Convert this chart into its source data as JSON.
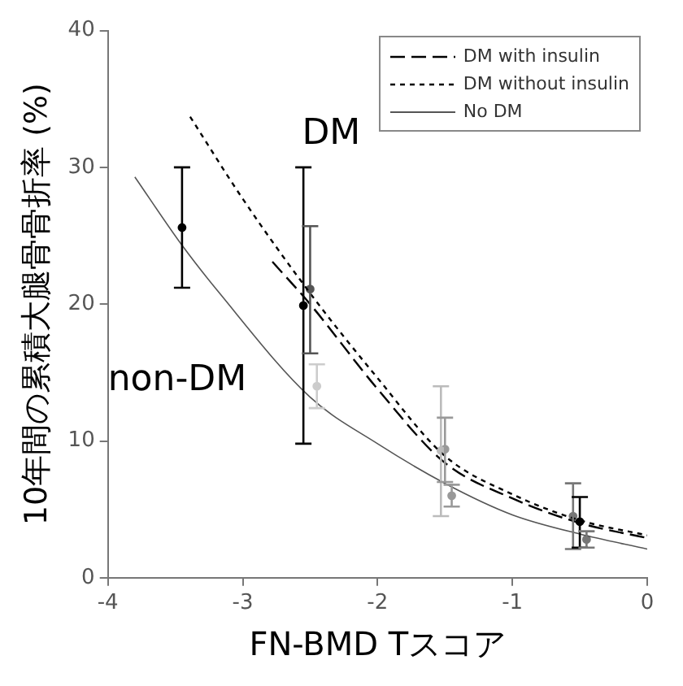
{
  "chart_data": {
    "type": "line",
    "xlabel": "FN-BMD Tスコア",
    "ylabel": "10年間の累積大腿骨骨折率 (%)",
    "xlim": [
      -4,
      0
    ],
    "xticks": [
      -4,
      -3,
      -2,
      -1,
      0
    ],
    "ylim": [
      0,
      40
    ],
    "yticks": [
      0,
      10,
      20,
      30,
      40
    ],
    "grid": false,
    "legend": "top right",
    "series": [
      {
        "name": "DM with insulin",
        "line_style": "dashed",
        "color": "#000000",
        "x": [
          -2.78,
          -2.5,
          -2,
          -1.5,
          -1,
          -0.5,
          0
        ],
        "values": [
          23.1,
          20,
          13.8,
          8.4,
          5.8,
          4,
          2.9
        ]
      },
      {
        "name": "DM without insulin",
        "line_style": "dotted",
        "color": "#000000",
        "x": [
          -3.39,
          -3,
          -2.5,
          -2,
          -1.5,
          -1,
          -0.5,
          0
        ],
        "values": [
          33.7,
          27.7,
          20.8,
          14.6,
          8.9,
          6.1,
          4.2,
          3.1
        ]
      },
      {
        "name": "No DM",
        "line_style": "solid",
        "color": "#555555",
        "x": [
          -3.8,
          -3.45,
          -3.18,
          -2.5,
          -2,
          -1.5,
          -1,
          -0.5,
          0
        ],
        "values": [
          29.3,
          24.3,
          20.9,
          13.2,
          9.8,
          6.9,
          4.6,
          3.2,
          2.1
        ]
      },
      {
        "type": "scatter",
        "marker": "circle",
        "colors": [
          "#000000",
          "#000000",
          "#bbbbbb",
          "#777777"
        ],
        "x": [
          -3.45,
          -2.55,
          -1.53,
          -0.55
        ],
        "values": [
          25.6,
          19.9,
          9.3,
          4.5
        ],
        "errors": [
          [
            21.2,
            30
          ],
          [
            9.8,
            30
          ],
          [
            4.5,
            14
          ],
          [
            2.1,
            6.9
          ]
        ]
      },
      {
        "type": "scatter",
        "marker": "circle",
        "colors": [
          "#555555",
          "#999999",
          "#000000"
        ],
        "x": [
          -2.5,
          -1.5,
          -0.5
        ],
        "values": [
          21.1,
          9.4,
          4.1
        ],
        "errors": [
          [
            16.4,
            25.7
          ],
          [
            7,
            11.7
          ],
          [
            2.2,
            5.9
          ]
        ]
      },
      {
        "type": "scatter",
        "marker": "circle",
        "colors": [
          "#cccccc",
          "#999999",
          "#777777"
        ],
        "x": [
          -2.45,
          -1.45,
          -0.45
        ],
        "values": [
          14,
          6,
          2.8
        ],
        "errors": [
          [
            12.4,
            15.6
          ],
          [
            5.2,
            6.8
          ],
          [
            2.2,
            3.4
          ]
        ]
      }
    ],
    "annotations": [
      "DM",
      "non-DM"
    ]
  }
}
